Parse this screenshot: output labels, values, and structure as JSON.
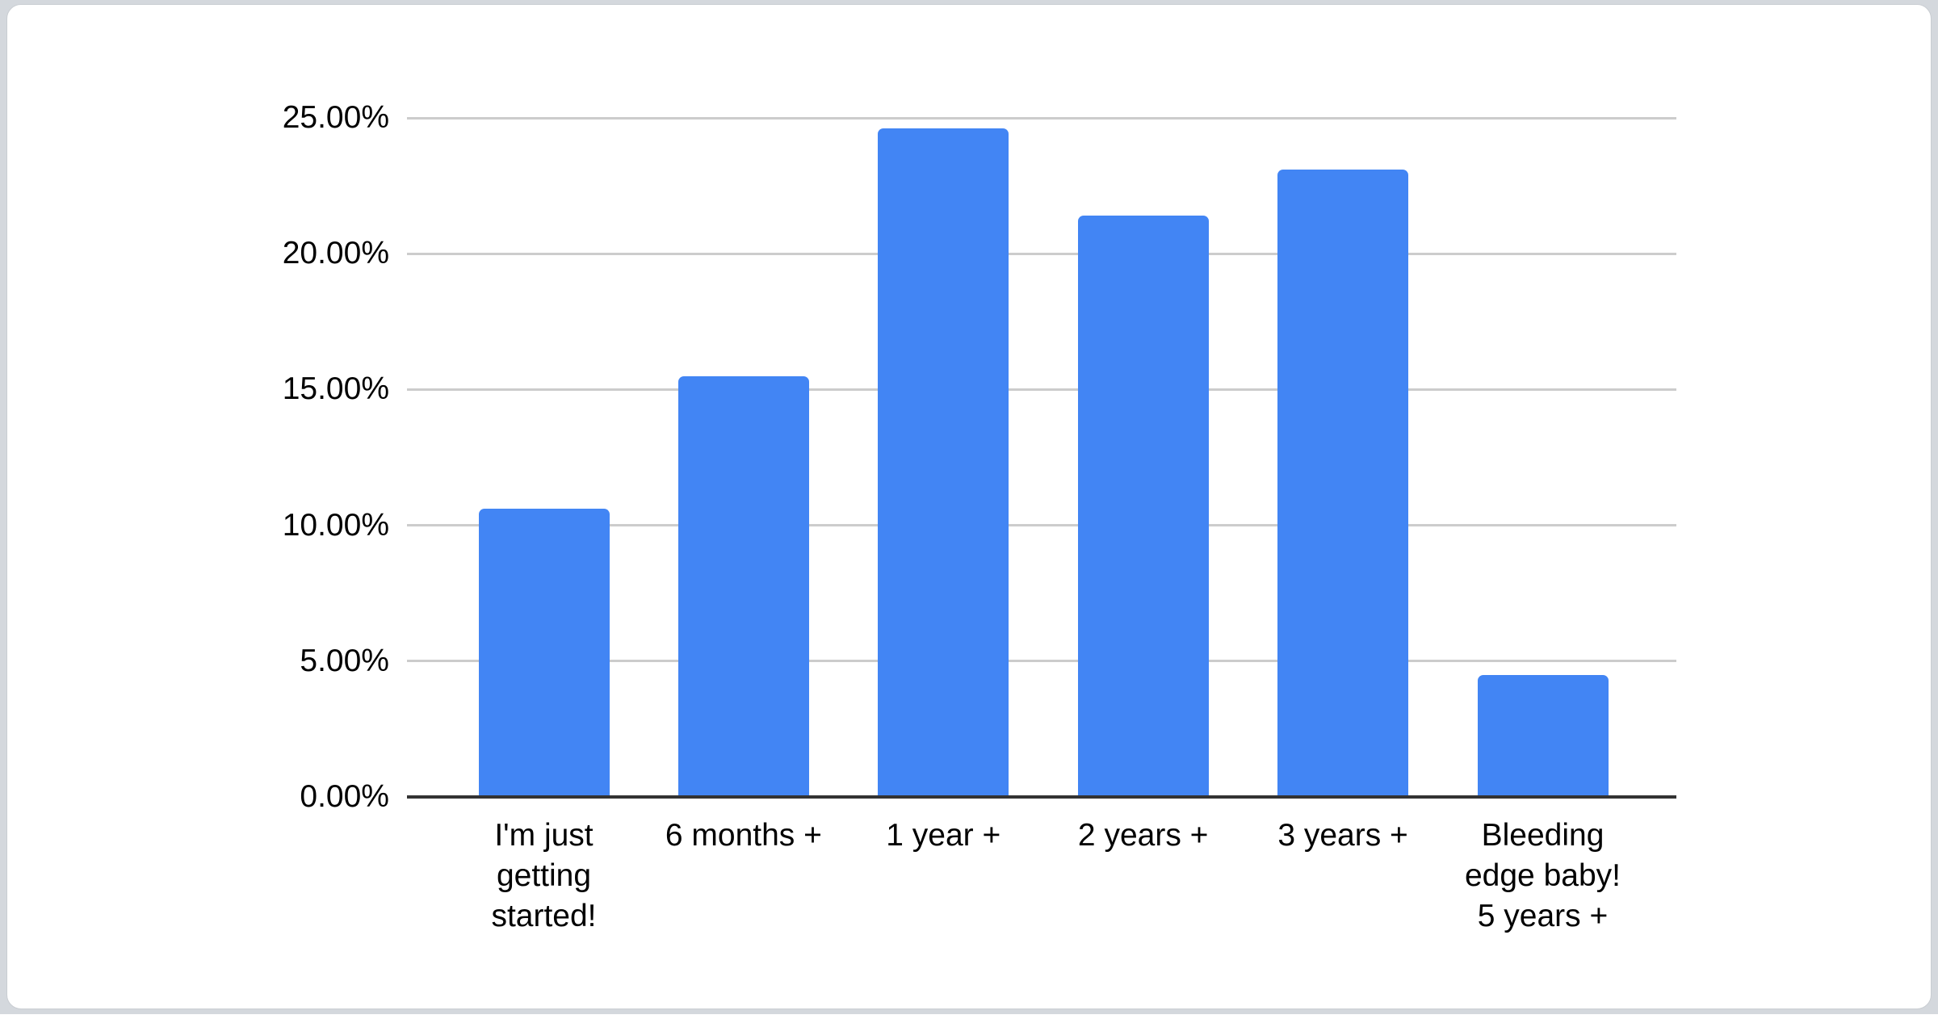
{
  "page": {
    "background_color": "#d4d8dd",
    "card_color": "#ffffff"
  },
  "chart_data": {
    "type": "bar",
    "title": "",
    "categories": [
      "I'm just getting started!",
      "6 months +",
      "1 year +",
      "2 years +",
      "3 years +",
      "Bleeding edge baby! 5 years +"
    ],
    "category_display_lines": [
      [
        "I'm just",
        "getting",
        "started!"
      ],
      [
        "6 months +"
      ],
      [
        "1 year +"
      ],
      [
        "2 years +"
      ],
      [
        "3 years +"
      ],
      [
        "Bleeding",
        "edge baby!",
        "5 years +"
      ]
    ],
    "values": [
      10.6,
      15.5,
      24.6,
      21.4,
      23.1,
      4.5
    ],
    "value_unit": "%",
    "ylim": [
      0,
      25
    ],
    "ytick_step": 5,
    "ytick_labels": [
      "0.00%",
      "5.00%",
      "10.00%",
      "15.00%",
      "20.00%",
      "25.00%"
    ],
    "xlabel": "",
    "ylabel": "",
    "grid": true,
    "legend": "none",
    "bar_color": "#4285f4",
    "gridline_color": "#cccccc",
    "baseline_color": "#333333",
    "label_color": "#000000"
  }
}
